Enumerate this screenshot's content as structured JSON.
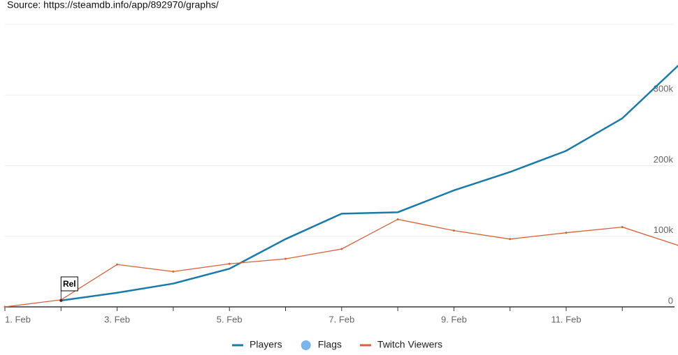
{
  "chart_data": {
    "type": "line",
    "source": "Source: https://steamdb.info/app/892970/graphs/",
    "categories": [
      "1. Feb",
      null,
      "3. Feb",
      null,
      "5. Feb",
      null,
      "7. Feb",
      null,
      "9. Feb",
      null,
      "11. Feb",
      null,
      null
    ],
    "series": [
      {
        "name": "Players",
        "color": "#1a7bab",
        "values": [
          null,
          9000,
          20000,
          33000,
          54000,
          96000,
          132000,
          134000,
          165000,
          191000,
          221000,
          267000,
          342000
        ]
      },
      {
        "name": "Twitch Viewers",
        "color": "#d9603b",
        "values": [
          0,
          10000,
          60000,
          50000,
          61000,
          68000,
          82000,
          124000,
          108000,
          96000,
          105000,
          113000,
          87000
        ]
      }
    ],
    "flags": {
      "name": "Flags",
      "color": "#7cb5ec",
      "items": [
        {
          "label": "Rel",
          "at": 1
        }
      ]
    },
    "ylim": [
      0,
      400000
    ],
    "yticks": [
      0,
      {
        "value": 100000,
        "label": "100k"
      },
      {
        "value": 200000,
        "label": "200k"
      },
      {
        "value": 300000,
        "label": "300k"
      }
    ],
    "grid": true
  }
}
